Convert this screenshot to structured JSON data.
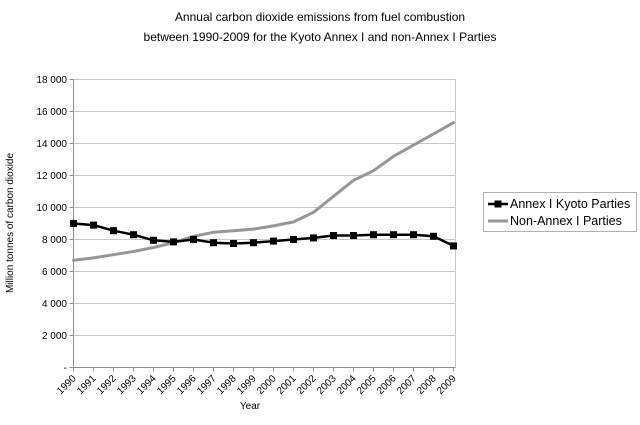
{
  "chart_data": {
    "type": "line",
    "title": "Annual carbon dioxide emissions from fuel combustion between 1990-2009 for the Kyoto Annex I and non-Annex I Parties",
    "title_line1": "Annual carbon dioxide emissions from fuel combustion",
    "title_line2": "between 1990-2009 for the Kyoto Annex I and non-Annex I Parties",
    "xlabel": "Year",
    "ylabel": "Million tonnes of carbon dioxide",
    "ylim": [
      0,
      18000
    ],
    "ytick_interval": 2000,
    "ytick_values": [
      0,
      2000,
      4000,
      6000,
      8000,
      10000,
      12000,
      14000,
      16000,
      18000
    ],
    "ytick_labels": [
      "-",
      "2 000",
      "4 000",
      "6 000",
      "8 000",
      "10 000",
      "12 000",
      "14 000",
      "16 000",
      "18 000"
    ],
    "categories": [
      "1990",
      "1991",
      "1992",
      "1993",
      "1994",
      "1995",
      "1996",
      "1997",
      "1998",
      "1999",
      "2000",
      "2001",
      "2002",
      "2003",
      "2004",
      "2005",
      "2006",
      "2007",
      "2008",
      "2009"
    ],
    "grid": "horizontal",
    "legend_position": "middle-right",
    "colors": {
      "background": "#ffffff",
      "gridline": "#c8c8c8",
      "axis": "#8f8f8f",
      "text": "#000000",
      "legend_border": "#b0b0b0"
    },
    "series": [
      {
        "name": "Annex I Kyoto Parties",
        "color": "#000000",
        "marker": "square",
        "line_width": 2.5,
        "values": [
          9000,
          8900,
          8550,
          8300,
          7950,
          7850,
          8000,
          7800,
          7750,
          7800,
          7900,
          8000,
          8100,
          8250,
          8250,
          8300,
          8300,
          8300,
          8200,
          7600
        ]
      },
      {
        "name": "Non-Annex I Parties",
        "color": "#969696",
        "marker": "none",
        "line_width": 3,
        "values": [
          6700,
          6850,
          7050,
          7250,
          7500,
          7800,
          8200,
          8450,
          8550,
          8650,
          8850,
          9100,
          9700,
          10700,
          11700,
          12300,
          13200,
          13900,
          14600,
          15300
        ]
      }
    ]
  }
}
